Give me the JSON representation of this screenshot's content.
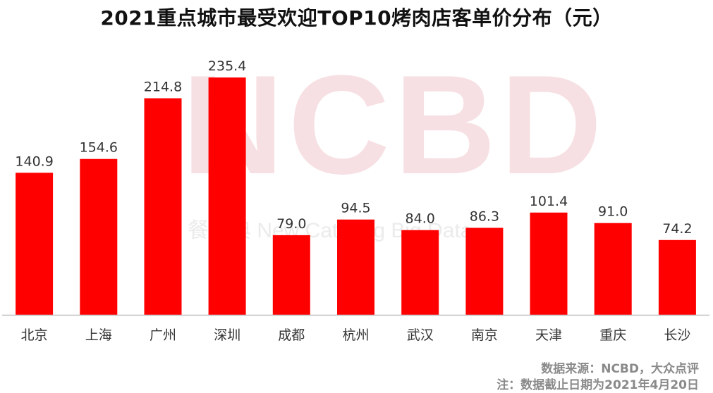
{
  "title": "2021重点城市最受欢迎TOP10烤肉店客单价分布（元）",
  "watermark": {
    "brand": "NCBD",
    "subtitle": "餐宝典 New Catering Big Data"
  },
  "colors": {
    "bar": "#ff0000",
    "axis": "#bfbfbf",
    "label": "#333333"
  },
  "chart_data": {
    "type": "bar",
    "title": "2021重点城市最受欢迎TOP10烤肉店客单价分布（元）",
    "xlabel": "",
    "ylabel": "",
    "categories": [
      "北京",
      "上海",
      "广州",
      "深圳",
      "成都",
      "杭州",
      "武汉",
      "南京",
      "天津",
      "重庆",
      "长沙"
    ],
    "values": [
      140.9,
      154.6,
      214.8,
      235.4,
      79.0,
      94.5,
      84.0,
      86.3,
      101.4,
      91.0,
      74.2
    ],
    "value_labels": [
      "140.9",
      "154.6",
      "214.8",
      "235.4",
      "79.0",
      "94.5",
      "84.0",
      "86.3",
      "101.4",
      "91.0",
      "74.2"
    ],
    "ylim": [
      0,
      235.4
    ],
    "grid": false,
    "legend": "none"
  },
  "footer": {
    "source": "数据来源：NCBD，大众点评",
    "note": "注：数据截止日期为2021年4月20日"
  }
}
